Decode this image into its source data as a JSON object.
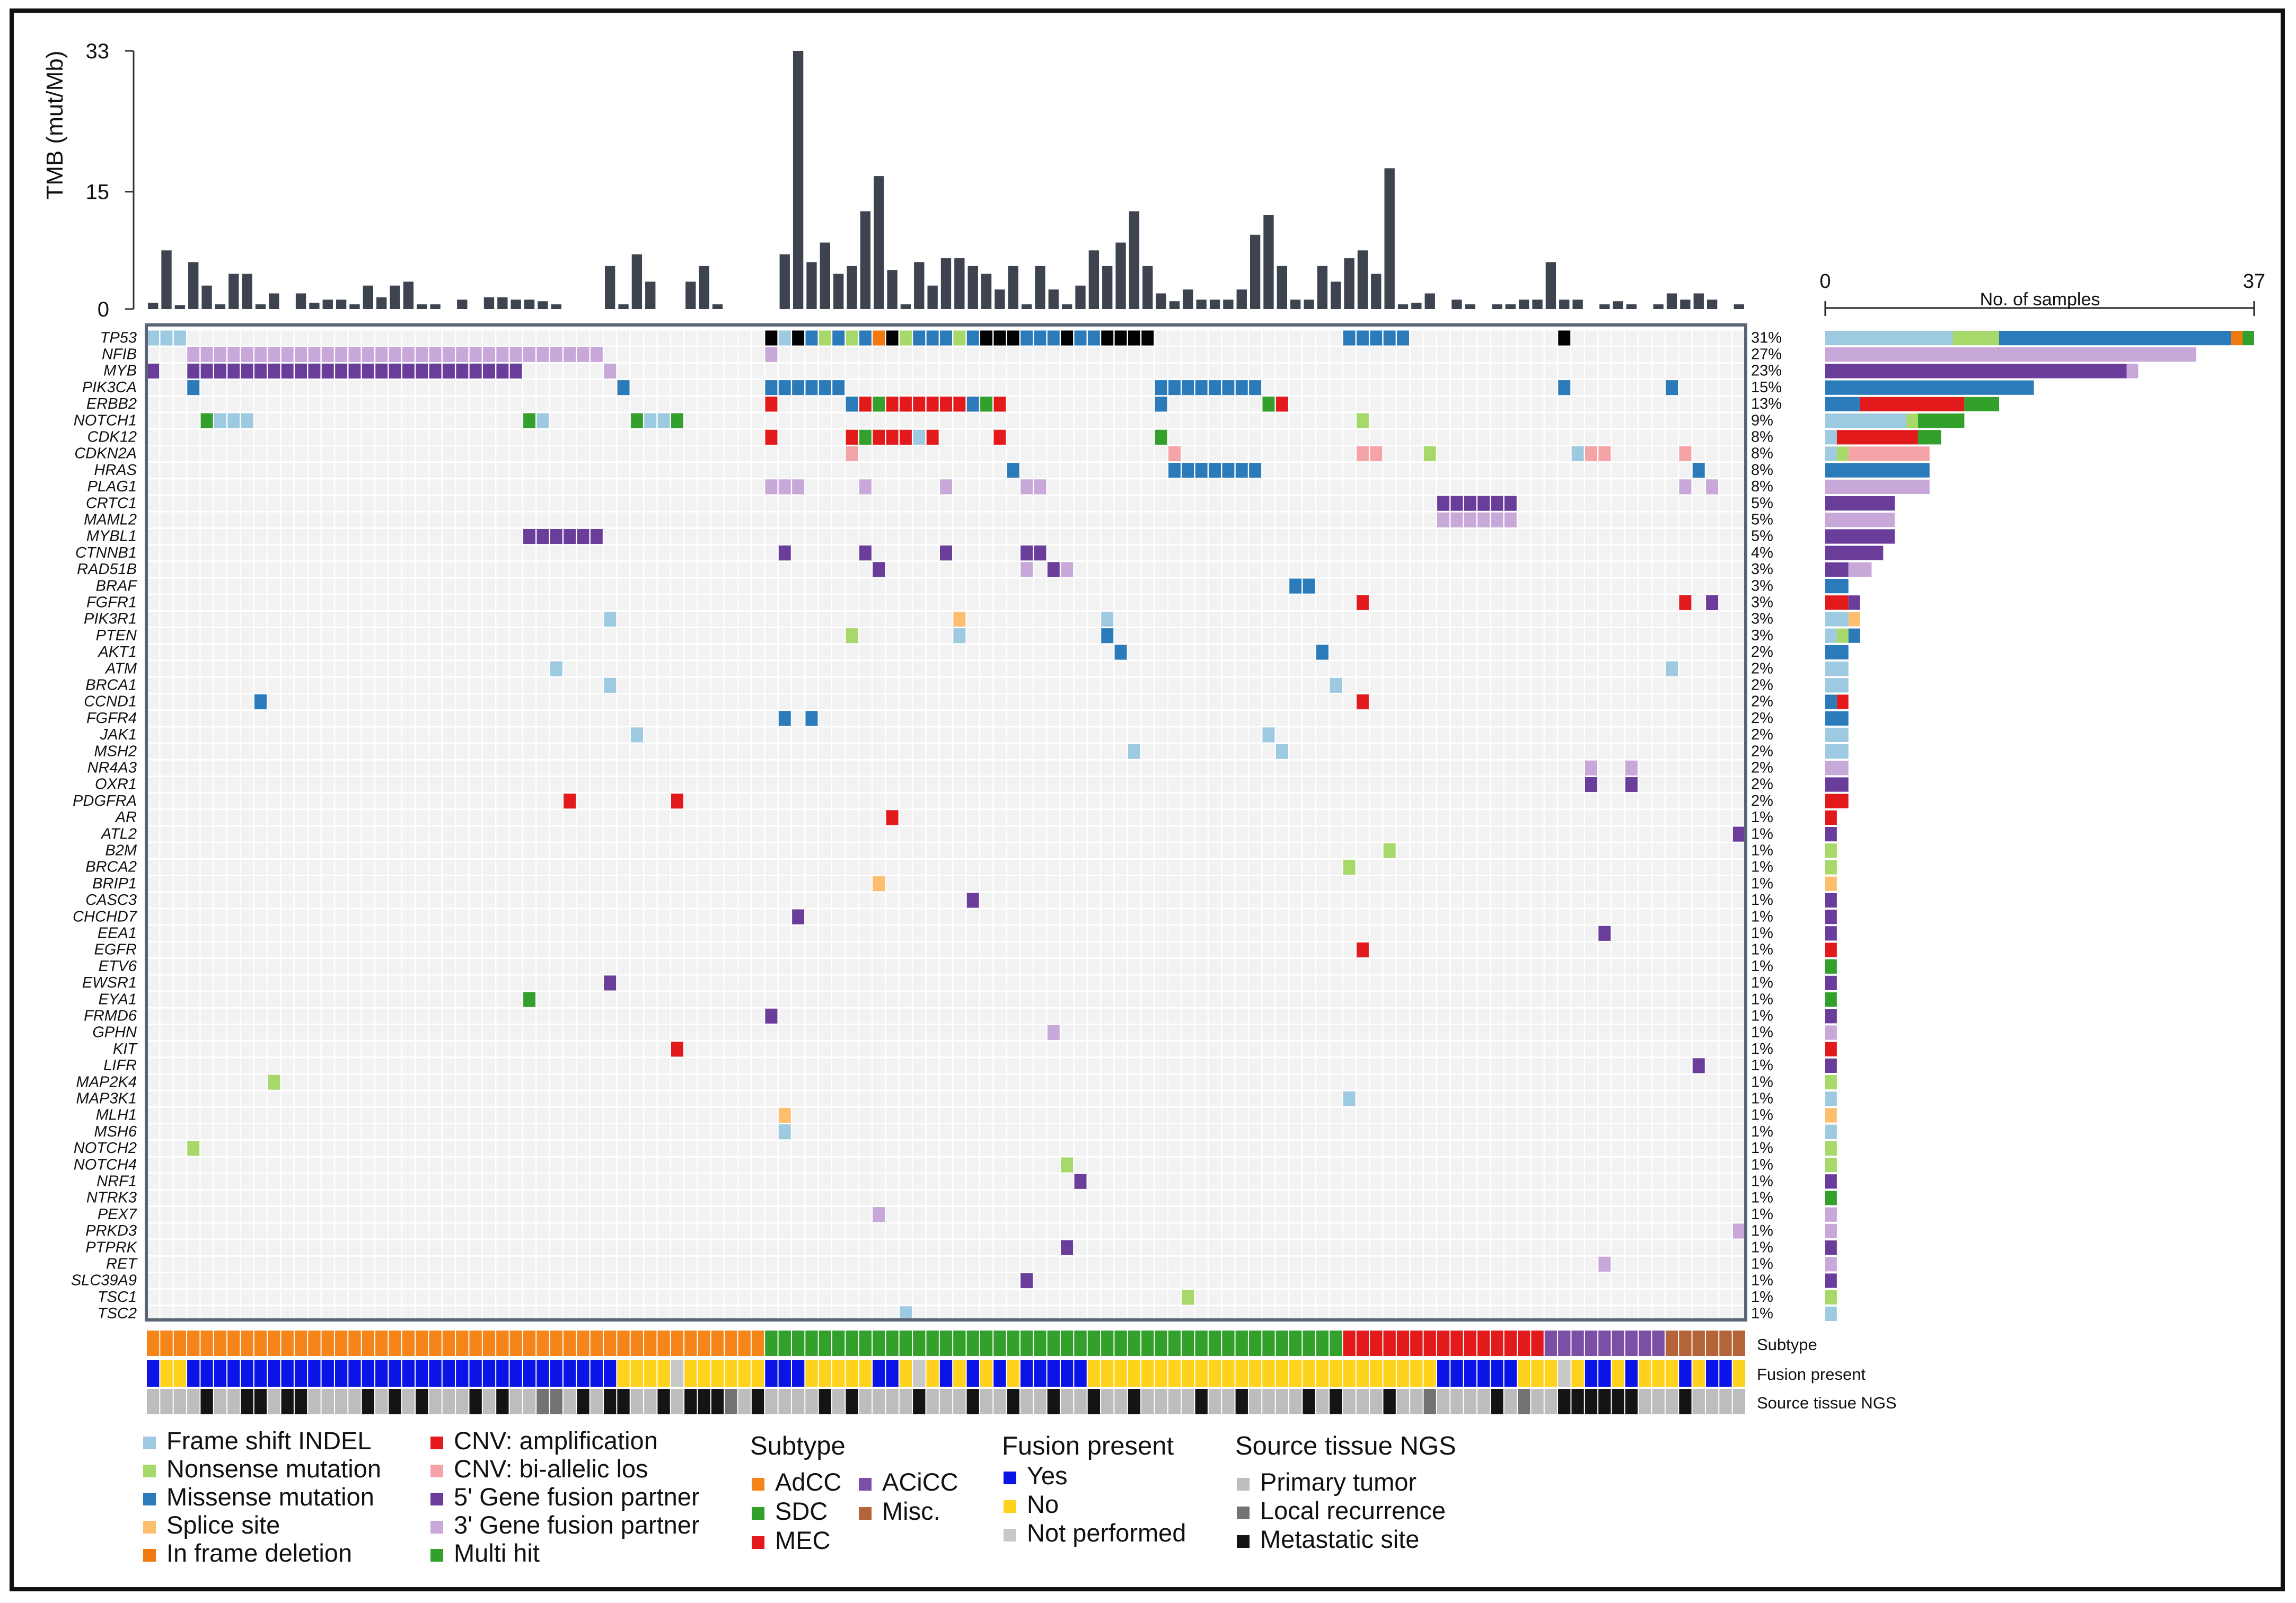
{
  "colors": {
    "frameshift": "#9ecae1",
    "nonsense": "#a6d96a",
    "missense": "#2b7bba",
    "splice": "#fdbf6f",
    "inframe": "#f2790f",
    "amp": "#e31a1c",
    "biallelic": "#f4a3a6",
    "fusion5": "#6a3d9a",
    "fusion3": "#c8a8d8",
    "multihit": "#33a02c",
    "AdCC": "#f58518",
    "SDC": "#33a02c",
    "MEC": "#e31a1c",
    "ACiCC": "#7b4fa6",
    "Misc": "#b5643a",
    "fusionYes": "#0a14e6",
    "fusionNo": "#ffd21e",
    "notPerformed": "#c8c8c8",
    "primary": "#bdbdbd",
    "local": "#737373",
    "metastatic": "#141414",
    "tmbBar": "#3d4450",
    "cellBg": "#f2f2f2"
  },
  "chart_data": [
    {
      "type": "bar",
      "name": "tmb",
      "ylabel": "TMB (mut/Mb)",
      "yticks": [
        0,
        15,
        33
      ],
      "ylim": [
        0,
        33
      ],
      "n_samples": 119,
      "values": [
        0.8,
        7.5,
        0.5,
        6,
        3,
        0.6,
        4.5,
        4.5,
        0.6,
        2,
        0,
        2,
        0.8,
        1.2,
        1.2,
        0.6,
        3,
        1.5,
        3,
        3.5,
        0.6,
        0.6,
        0,
        1.2,
        0,
        1.5,
        1.5,
        1.2,
        1.2,
        1,
        0.6,
        0,
        0,
        0,
        5.5,
        0.6,
        7,
        3.5,
        0,
        0,
        3.5,
        5.5,
        0.6,
        0,
        0,
        0,
        0,
        7,
        33,
        6,
        8.5,
        4.5,
        5.5,
        12.5,
        17,
        5,
        0.6,
        6,
        3,
        6.5,
        6.5,
        5.5,
        4.5,
        2.5,
        5.5,
        0.6,
        5.5,
        2.5,
        0.6,
        3,
        7.5,
        5.5,
        8.5,
        12.5,
        5.5,
        2,
        1,
        2.5,
        1.2,
        1.2,
        1.2,
        2.5,
        9.5,
        12,
        5.5,
        1.2,
        1.2,
        5.5,
        3.5,
        6.5,
        7.5,
        4.5,
        18,
        0.6,
        0.8,
        2,
        0,
        1.2,
        0.6,
        0,
        0.6,
        0.6,
        1.2,
        1.2,
        6,
        1.2,
        1.2,
        0,
        0.6,
        1,
        0.6,
        0,
        0.6,
        2,
        1.2,
        2,
        1.2,
        0,
        0.6
      ]
    },
    {
      "type": "heatmap",
      "name": "oncoprint",
      "genes": [
        "TP53",
        "NFIB",
        "MYB",
        "PIK3CA",
        "ERBB2",
        "NOTCH1",
        "CDK12",
        "CDKN2A",
        "HRAS",
        "PLAG1",
        "CRTC1",
        "MAML2",
        "MYBL1",
        "CTNNB1",
        "RAD51B",
        "BRAF",
        "FGFR1",
        "PIK3R1",
        "PTEN",
        "AKT1",
        "ATM",
        "BRCA1",
        "CCND1",
        "FGFR4",
        "JAK1",
        "MSH2",
        "NR4A3",
        "OXR1",
        "PDGFRA",
        "AR",
        "ATL2",
        "B2M",
        "BRCA2",
        "BRIP1",
        "CASC3",
        "CHCHD7",
        "EEA1",
        "EGFR",
        "ETV6",
        "EWSR1",
        "EYA1",
        "FRMD6",
        "GPHN",
        "KIT",
        "LIFR",
        "MAP2K4",
        "MAP3K1",
        "MLH1",
        "MSH6",
        "NOTCH2",
        "NOTCH4",
        "NRF1",
        "NTRK3",
        "PEX7",
        "PRKD3",
        "PTPRK",
        "RET",
        "SLC39A9",
        "TSC1",
        "TSC2"
      ],
      "percentages": [
        "31%",
        "27%",
        "23%",
        "15%",
        "13%",
        "9%",
        "8%",
        "8%",
        "8%",
        "8%",
        "5%",
        "5%",
        "5%",
        "4%",
        "3%",
        "3%",
        "3%",
        "3%",
        "3%",
        "2%",
        "2%",
        "2%",
        "2%",
        "2%",
        "2%",
        "2%",
        "2%",
        "2%",
        "2%",
        "1%",
        "1%",
        "1%",
        "1%",
        "1%",
        "1%",
        "1%",
        "1%",
        "1%",
        "1%",
        "1%",
        "1%",
        "1%",
        "1%",
        "1%",
        "1%",
        "1%",
        "1%",
        "1%",
        "1%",
        "1%",
        "1%",
        "1%",
        "1%",
        "1%",
        "1%",
        "1%",
        "1%",
        "1%",
        "1%",
        "1%"
      ],
      "alterations": [
        "TP53:0-2=S,46=F,47=S,48=F,49=M,50=N,51=M,52=N,53=M,54=I,55=F,56=N,57=M,58-59=M,60=N,61=M,62=F,63-64=F,65-67=M,68=F,69-70=M,71-74=F,89-93=M,105=F,119=H",
        "NFIB:3-33=T,46=T",
        "MYB:0=P,3-27=P,34=T",
        "PIK3CA:3=M,35=M,46-51=M,75-82=M,105=M,113=M",
        "ERBB2:46=A,52=M,53=A,54=H,55-60=A,61=M,62=H,63=A,75=M,83=H,84=A",
        "NOTCH1:4=H,5-7=S,28=H,29=S,36=H,37-38=S,39=H,90=N",
        "CDK12:46=A,52=A,53=H,54-56=A,57=S,58=A,63=A,75=H",
        "CDKN2A:52=B,76=B,90-91=B,95=N,106=S,107-108=B,114=B",
        "HRAS:64=M,76-82=M,115=M",
        "PLAG1:46-48=T,53=T,59=T,65-66=T,114=T,116=T",
        "CRTC1:96-101=P",
        "MAML2:96-101=T",
        "MYBL1:28-33=P",
        "CTNNB1:47=P,53=P,59=P,65-66=P",
        "RAD51B:54=P,65=T,67=P,68=T",
        "BRAF:85-86=M",
        "FGFR1:90=A,114=A,116=P",
        "PIK3R1:34=S,60=Sp,71=S",
        "PTEN:52=N,60=S,71=M",
        "AKT1:72=M,87=M",
        "ATM:30=S,113=S",
        "BRCA1:34=S,88=S",
        "CCND1:8=M,90=A",
        "FGFR4:47=M,49=M",
        "JAK1:36=S,83=S",
        "MSH2:73=S,84=S",
        "NR4A3:107=T,110=T",
        "OXR1:107=P,110=P",
        "PDGFRA:31=A,39=A",
        "AR:55=A",
        "ATL2:118=P",
        "B2M:92=N",
        "BRCA2:89=N",
        "BRIP1:54=Sp",
        "CASC3:61=P",
        "CHCHD7:48=P",
        "EEA1:108=P",
        "EGFR:90=A",
        "ETV6:119=H",
        "EWSR1:34=P",
        "EYA1:28=H",
        "FRMD6:46=P",
        "GPHN:67=T",
        "KIT:39=A",
        "LIFR:115=P",
        "MAP2K4:9=N",
        "MAP3K1:89=S",
        "MLH1:47=Sp",
        "MSH6:47=S",
        "NOTCH2:3=N",
        "NOTCH4:68=N",
        "NRF1:69=P",
        "NTRK3:119=H",
        "PEX7:54=T",
        "PRKD3:118=T",
        "PTPRK:68=P",
        "RET:108=T",
        "SLC39A9:65=P",
        "TSC1:77=N",
        "TSC2:56=S"
      ]
    },
    {
      "type": "bar",
      "name": "gene_counts",
      "xlabel": "No. of samples",
      "xticks": [
        0,
        37
      ],
      "xlim": [
        0,
        37
      ],
      "counts": [
        "TP53:S=11,N=4,M=20,I=1,H=1",
        "NFIB:T=32",
        "MYB:P=26,T=1",
        "PIK3CA:M=18",
        "ERBB2:M=3,A=9,H=3",
        "NOTCH1:S=7,H=4,N=1",
        "CDK12:S=1,H=2,A=7",
        "CDKN2A:S=1,N=1,B=7",
        "HRAS:M=9",
        "PLAG1:T=9",
        "CRTC1:P=6",
        "MAML2:T=6",
        "MYBL1:P=6",
        "CTNNB1:P=5",
        "RAD51B:P=2,T=2",
        "BRAF:M=2",
        "FGFR1:A=2,P=1",
        "PIK3R1:S=2,Sp=1",
        "PTEN:S=1,N=1,M=1",
        "AKT1:M=2",
        "ATM:S=2",
        "BRCA1:S=2",
        "CCND1:M=1,A=1",
        "FGFR4:M=2",
        "JAK1:S=2",
        "MSH2:S=2",
        "NR4A3:T=2",
        "OXR1:P=2",
        "PDGFRA:A=2",
        "AR:A=1",
        "ATL2:P=1",
        "B2M:N=1",
        "BRCA2:N=1",
        "BRIP1:Sp=1",
        "CASC3:P=1",
        "CHCHD7:P=1",
        "EEA1:P=1",
        "EGFR:A=1",
        "ETV6:H=1",
        "EWSR1:P=1",
        "EYA1:H=1",
        "FRMD6:P=1",
        "GPHN:T=1",
        "KIT:A=1",
        "LIFR:P=1",
        "MAP2K4:N=1",
        "MAP3K1:S=1",
        "MLH1:Sp=1",
        "MSH6:S=1",
        "NOTCH2:N=1",
        "NOTCH4:N=1",
        "NRF1:P=1",
        "NTRK3:H=1",
        "PEX7:T=1",
        "PRKD3:T=1",
        "PTPRK:P=1",
        "RET:T=1",
        "SLC39A9:P=1",
        "TSC1:N=1",
        "TSC2:S=1"
      ]
    },
    {
      "type": "heatmap",
      "name": "annotation_tracks",
      "tracks": [
        {
          "label": "Subtype",
          "segments": "0-45=AdCC,46-88=SDC,89-103=MEC,104-112=ACiCC,113-118=Misc"
        },
        {
          "label": "Fusion present",
          "segments": "0=Y,1-2=N,3-34=Y,35-38=N,39=P,40-45=N,46-48=Y,49-53=N,54-55=Y,56=N,57=P,58=N,59=Y,60=N,61=Y,62=N,63=Y,64=N,65-69=Y,70-95=N,96-101=Y,102-104=N,105=P,106=N,107-108=Y,109=N,110=Y,111-113=N,114=Y,115=N,116-117=Y,118=N"
        },
        {
          "label": "Source tissue NGS",
          "segments": "0-3=P,4=M,5-6=P,7-8=M,9=P,10-11=M,12-15=P,16=M,17=P,18=M,19=P,20=M,21-23=P,24=M,25=P,26=M,27-28=P,29-30=L,31=P,32=M,33=P,34-35=M,36-37=P,38=M,39=P,40-42=M,43=L,44=P,45=M,46-49=P,50=M,51=P,52=M,53-56=P,57=M,58-60=P,61=M,62-63=P,64=M,65-66=P,67=M,68-69=P,70=M,71-72=P,73=M,74-77=P,78=M,79-80=P,81=M,82-85=P,86=M,87=P,88=M,89-91=P,92=M,93-94=P,95=L,96-99=P,100=M,101=P,102=L,103-104=P,105-110=M,111-113=P,114=M,115-118=P"
        }
      ]
    }
  ],
  "legend": {
    "mutation_items": [
      {
        "label": "Frame shift INDEL",
        "key": "frameshift"
      },
      {
        "label": "Nonsense mutation",
        "key": "nonsense"
      },
      {
        "label": "Missense mutation",
        "key": "missense"
      },
      {
        "label": "Splice site",
        "key": "splice"
      },
      {
        "label": "In frame deletion",
        "key": "inframe"
      },
      {
        "label": "CNV: amplification",
        "key": "amp"
      },
      {
        "label": "CNV: bi-allelic los",
        "key": "biallelic"
      },
      {
        "label": "5' Gene fusion partner",
        "key": "fusion5"
      },
      {
        "label": "3' Gene fusion partner",
        "key": "fusion3"
      },
      {
        "label": "Multi hit",
        "key": "multihit"
      }
    ],
    "subtype_title": "Subtype",
    "subtype_items": [
      {
        "label": "AdCC",
        "key": "AdCC"
      },
      {
        "label": "ACiCC",
        "key": "ACiCC"
      },
      {
        "label": "SDC",
        "key": "SDC"
      },
      {
        "label": "Misc.",
        "key": "Misc"
      },
      {
        "label": "MEC",
        "key": "MEC"
      }
    ],
    "fusion_title": "Fusion present",
    "fusion_items": [
      {
        "label": "Yes",
        "key": "fusionYes"
      },
      {
        "label": "No",
        "key": "fusionNo"
      },
      {
        "label": "Not performed",
        "key": "notPerformed"
      }
    ],
    "source_title": "Source tissue NGS",
    "source_items": [
      {
        "label": "Primary tumor",
        "key": "primary"
      },
      {
        "label": "Local recurrence",
        "key": "local"
      },
      {
        "label": "Metastatic site",
        "key": "metastatic"
      }
    ]
  }
}
